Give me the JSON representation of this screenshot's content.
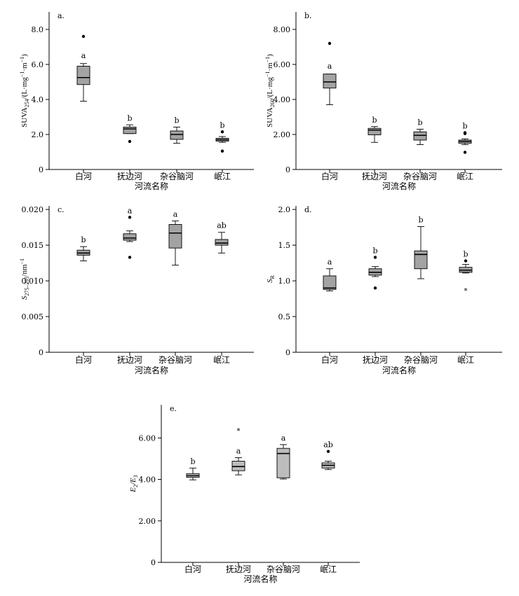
{
  "chart_data": [
    {
      "type": "box",
      "panel_label": "a.",
      "ylabel": "SUVA",
      "ylabel_sub": "254",
      "ylabel_rest": "/(L·mg",
      "ylabel_unit2": "·m",
      "ylabel_end": ")",
      "sup1": "−1",
      "sup2": "−1",
      "xlabel": "河流名称",
      "categories": [
        "白河",
        "抚边河",
        "杂谷脑河",
        "岷江"
      ],
      "ylim": [
        0,
        9
      ],
      "yticks": [
        0,
        2.0,
        4.0,
        6.0,
        8.0
      ],
      "ytick_labels": [
        "0",
        "2.0",
        "4.0",
        "6.0",
        "8.0"
      ],
      "boxes": [
        {
          "q1": 4.85,
          "median": 5.25,
          "q3": 5.9,
          "whisk_low": 3.9,
          "whisk_high": 6.05,
          "outliers": [
            7.6
          ],
          "extremes": [],
          "sig": "a"
        },
        {
          "q1": 2.05,
          "median": 2.32,
          "q3": 2.42,
          "whisk_low": 2.05,
          "whisk_high": 2.55,
          "outliers": [
            1.6
          ],
          "extremes": [],
          "sig": "b"
        },
        {
          "q1": 1.72,
          "median": 2.0,
          "q3": 2.2,
          "whisk_low": 1.5,
          "whisk_high": 2.42,
          "outliers": [],
          "extremes": [],
          "sig": "b"
        },
        {
          "q1": 1.62,
          "median": 1.7,
          "q3": 1.78,
          "whisk_low": 1.55,
          "whisk_high": 1.88,
          "outliers": [
            2.15,
            1.05
          ],
          "extremes": [],
          "sig": "b"
        }
      ]
    },
    {
      "type": "box",
      "panel_label": "b.",
      "ylabel": "SUVA",
      "ylabel_sub": "260",
      "ylabel_rest": "/(L·mg",
      "ylabel_unit2": "·m",
      "ylabel_end": ")",
      "sup1": "−1",
      "sup2": "−1",
      "xlabel": "河流名称",
      "categories": [
        "白河",
        "抚边河",
        "杂谷脑河",
        "岷江"
      ],
      "ylim": [
        0,
        9
      ],
      "yticks": [
        0,
        2.0,
        4.0,
        6.0,
        8.0
      ],
      "ytick_labels": [
        "0",
        "2.00",
        "4.00",
        "6.00",
        "8.00"
      ],
      "boxes": [
        {
          "q1": 4.65,
          "median": 5.0,
          "q3": 5.45,
          "whisk_low": 3.7,
          "whisk_high": 5.45,
          "outliers": [
            7.2
          ],
          "extremes": [],
          "sig": "a"
        },
        {
          "q1": 1.98,
          "median": 2.25,
          "q3": 2.35,
          "whisk_low": 1.55,
          "whisk_high": 2.45,
          "outliers": [],
          "extremes": [],
          "sig": "b"
        },
        {
          "q1": 1.68,
          "median": 1.95,
          "q3": 2.15,
          "whisk_low": 1.42,
          "whisk_high": 2.3,
          "outliers": [],
          "extremes": [],
          "sig": "b"
        },
        {
          "q1": 1.5,
          "median": 1.6,
          "q3": 1.68,
          "whisk_low": 1.42,
          "whisk_high": 1.75,
          "outliers": [
            2.1,
            2.05,
            0.98
          ],
          "extremes": [],
          "sig": "b"
        }
      ]
    },
    {
      "type": "box",
      "panel_label": "c.",
      "ylabel": "S",
      "ylabel_sub": "275–295",
      "ylabel_rest": "/nm",
      "ylabel_unit2": "",
      "ylabel_end": "",
      "sup1": "−1",
      "sup2": "",
      "xlabel": "河流名称",
      "categories": [
        "白河",
        "抚边河",
        "杂谷脑河",
        "岷江"
      ],
      "ylim": [
        0,
        0.0205
      ],
      "yticks": [
        0,
        0.005,
        0.01,
        0.015,
        0.02
      ],
      "ytick_labels": [
        "0",
        "0.005",
        "0.010",
        "0.015",
        "0.020"
      ],
      "boxes": [
        {
          "q1": 0.0136,
          "median": 0.0139,
          "q3": 0.0143,
          "whisk_low": 0.0128,
          "whisk_high": 0.0148,
          "outliers": [],
          "extremes": [],
          "sig": "b"
        },
        {
          "q1": 0.0157,
          "median": 0.016,
          "q3": 0.0166,
          "whisk_low": 0.0155,
          "whisk_high": 0.017,
          "outliers": [
            0.0189,
            0.0133
          ],
          "extremes": [],
          "sig": "a"
        },
        {
          "q1": 0.0146,
          "median": 0.0167,
          "q3": 0.0179,
          "whisk_low": 0.0122,
          "whisk_high": 0.0184,
          "outliers": [],
          "extremes": [],
          "sig": "a"
        },
        {
          "q1": 0.015,
          "median": 0.0153,
          "q3": 0.0158,
          "whisk_low": 0.0139,
          "whisk_high": 0.0168,
          "outliers": [],
          "extremes": [],
          "sig": "ab"
        }
      ]
    },
    {
      "type": "box",
      "panel_label": "d.",
      "ylabel": "S",
      "ylabel_sub": "R",
      "ylabel_rest": "",
      "ylabel_unit2": "",
      "ylabel_end": "",
      "sup1": "",
      "sup2": "",
      "xlabel": "河流名称",
      "categories": [
        "白河",
        "抚边河",
        "杂谷脑河",
        "岷江"
      ],
      "ylim": [
        0,
        2.05
      ],
      "yticks": [
        0,
        0.5,
        1.0,
        1.5,
        2.0
      ],
      "ytick_labels": [
        "0",
        "0.5",
        "1.0",
        "1.5",
        "2.0"
      ],
      "boxes": [
        {
          "q1": 0.88,
          "median": 0.9,
          "q3": 1.07,
          "whisk_low": 0.86,
          "whisk_high": 1.17,
          "outliers": [],
          "extremes": [],
          "sig": "a"
        },
        {
          "q1": 1.08,
          "median": 1.12,
          "q3": 1.17,
          "whisk_low": 1.06,
          "whisk_high": 1.2,
          "outliers": [
            1.33,
            0.9
          ],
          "extremes": [],
          "sig": "b"
        },
        {
          "q1": 1.17,
          "median": 1.37,
          "q3": 1.42,
          "whisk_low": 1.03,
          "whisk_high": 1.76,
          "outliers": [],
          "extremes": [],
          "sig": "b"
        },
        {
          "q1": 1.12,
          "median": 1.15,
          "q3": 1.19,
          "whisk_low": 1.11,
          "whisk_high": 1.23,
          "outliers": [
            1.28
          ],
          "extremes": [
            0.88
          ],
          "sig": "b"
        }
      ]
    },
    {
      "type": "box",
      "panel_label": "e.",
      "ylabel": "E",
      "ylabel_sub": "2",
      "ylabel_rest": "/E",
      "ylabel_unit2": "",
      "ylabel_end": "",
      "ylabel_sub2": "3",
      "sup1": "",
      "sup2": "",
      "xlabel": "河流名称",
      "categories": [
        "白河",
        "抚边河",
        "杂谷脑河",
        "岷江"
      ],
      "ylim": [
        0,
        7.6
      ],
      "yticks": [
        0,
        2.0,
        4.0,
        6.0
      ],
      "ytick_labels": [
        "0",
        "2.00",
        "4.00",
        "6.00"
      ],
      "boxes": [
        {
          "q1": 4.1,
          "median": 4.18,
          "q3": 4.28,
          "whisk_low": 3.98,
          "whisk_high": 4.55,
          "outliers": [],
          "extremes": [],
          "sig": "b"
        },
        {
          "q1": 4.42,
          "median": 4.62,
          "q3": 4.88,
          "whisk_low": 4.22,
          "whisk_high": 5.05,
          "outliers": [],
          "extremes": [
            6.4
          ],
          "sig": "a"
        },
        {
          "q1": 4.08,
          "median": 5.25,
          "q3": 5.5,
          "whisk_low": 4.02,
          "whisk_high": 5.68,
          "outliers": [],
          "extremes": [],
          "sig": "a"
        },
        {
          "q1": 4.55,
          "median": 4.68,
          "q3": 4.8,
          "whisk_low": 4.48,
          "whisk_high": 4.88,
          "outliers": [
            5.35
          ],
          "extremes": [],
          "sig": "ab"
        }
      ]
    }
  ],
  "style": {
    "box_fill": "#a3a3a3",
    "box_fill_light": "#bdbdbd",
    "ink": "#000000"
  }
}
